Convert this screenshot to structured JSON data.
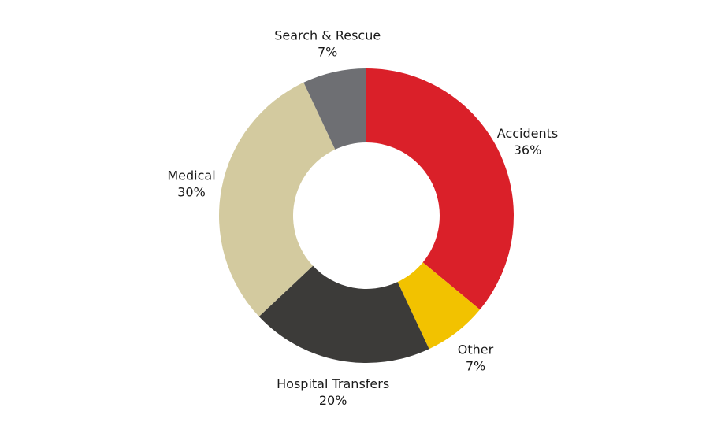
{
  "chart_data": {
    "type": "pie",
    "donut": true,
    "start": "top, clockwise",
    "categories": [
      "Accidents",
      "Other",
      "Hospital Transfers",
      "Medical",
      "Search & Rescue"
    ],
    "values": [
      36,
      7,
      20,
      30,
      7
    ],
    "labels": [
      "36%",
      "7%",
      "20%",
      "30%",
      "7%"
    ],
    "colors": [
      "#DA2029",
      "#F2C200",
      "#3C3B39",
      "#D3CA9F",
      "#6E6F73"
    ],
    "legend": "none (labels outside slices)"
  }
}
